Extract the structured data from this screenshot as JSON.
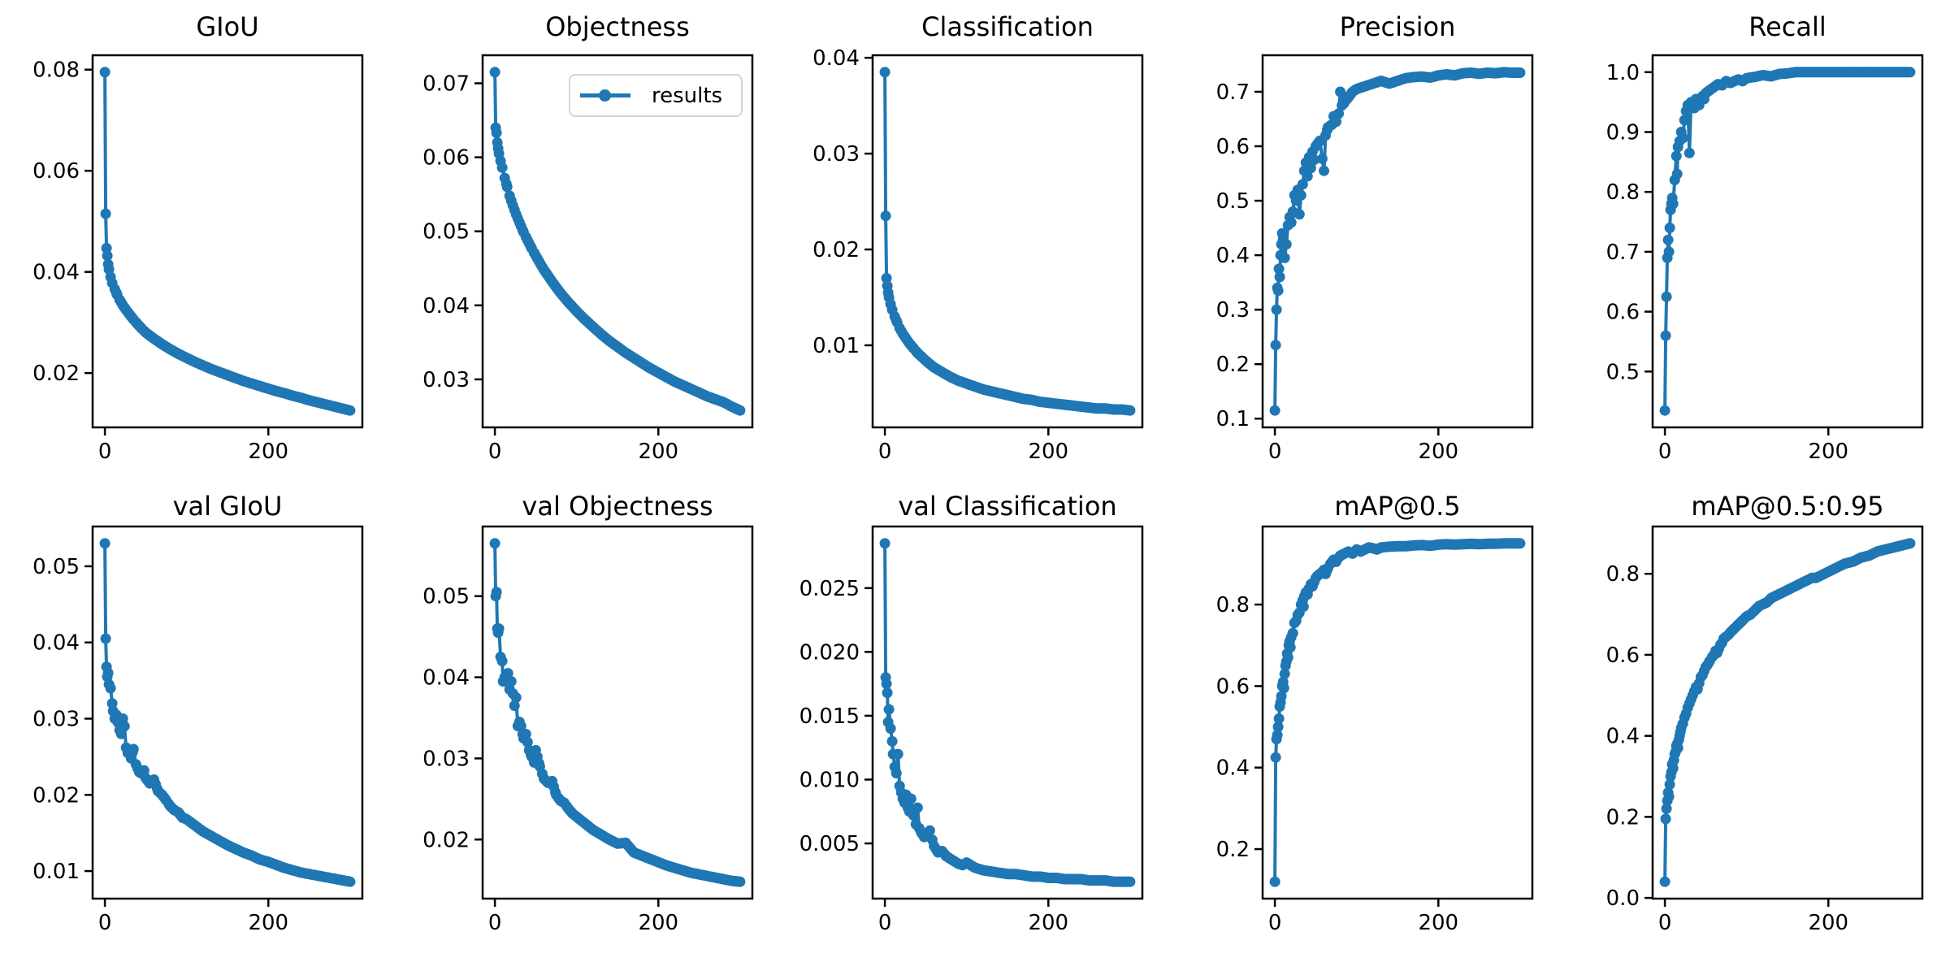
{
  "figure": {
    "background": "#ffffff",
    "line_color": "#1f77b4",
    "text_color": "#000000",
    "spine_color": "#000000",
    "grid": false,
    "xlim": [
      -15,
      315
    ],
    "xticks": [
      "0",
      "200"
    ]
  },
  "legend": {
    "label": "results",
    "host_chart": "Objectness",
    "position": "upper right"
  },
  "chart_data": [
    {
      "type": "line",
      "title": "GIoU",
      "yticks": [
        "0.02",
        "0.04",
        "0.06",
        "0.08"
      ],
      "x": [
        0,
        1,
        2,
        3,
        4,
        5,
        7,
        9,
        12,
        15,
        18,
        22,
        26,
        30,
        35,
        40,
        45,
        50,
        60,
        70,
        80,
        90,
        100,
        110,
        120,
        130,
        140,
        150,
        160,
        170,
        180,
        190,
        200,
        210,
        220,
        230,
        240,
        250,
        260,
        270,
        280,
        290,
        300
      ],
      "y": [
        0.0795,
        0.0515,
        0.0447,
        0.0432,
        0.0415,
        0.0405,
        0.039,
        0.0378,
        0.0366,
        0.0355,
        0.0345,
        0.0334,
        0.0325,
        0.0316,
        0.0306,
        0.0297,
        0.0288,
        0.028,
        0.0268,
        0.0257,
        0.0247,
        0.0238,
        0.023,
        0.0222,
        0.0215,
        0.0208,
        0.0202,
        0.0196,
        0.019,
        0.0184,
        0.0179,
        0.0174,
        0.0169,
        0.0164,
        0.016,
        0.0155,
        0.0151,
        0.0146,
        0.0142,
        0.0138,
        0.0134,
        0.013,
        0.0126
      ]
    },
    {
      "type": "line",
      "title": "Objectness",
      "yticks": [
        "0.03",
        "0.04",
        "0.05",
        "0.06",
        "0.07"
      ],
      "x": [
        0,
        1,
        2,
        3,
        4,
        5,
        7,
        9,
        12,
        15,
        18,
        22,
        26,
        30,
        35,
        40,
        45,
        50,
        60,
        70,
        80,
        90,
        100,
        110,
        120,
        130,
        140,
        150,
        160,
        170,
        180,
        190,
        200,
        210,
        220,
        230,
        240,
        250,
        260,
        270,
        280,
        290,
        300
      ],
      "y": [
        0.0715,
        0.064,
        0.0633,
        0.062,
        0.0612,
        0.0605,
        0.0595,
        0.0586,
        0.0572,
        0.056,
        0.0548,
        0.0535,
        0.0523,
        0.0512,
        0.0499,
        0.0488,
        0.0477,
        0.0467,
        0.0448,
        0.0432,
        0.0417,
        0.0404,
        0.0392,
        0.0381,
        0.0371,
        0.0361,
        0.0352,
        0.0344,
        0.0336,
        0.0329,
        0.0322,
        0.0315,
        0.0309,
        0.0303,
        0.0297,
        0.0292,
        0.0287,
        0.0282,
        0.0277,
        0.0273,
        0.0269,
        0.0263,
        0.0258
      ]
    },
    {
      "type": "line",
      "title": "Classification",
      "yticks": [
        "0.01",
        "0.02",
        "0.03",
        "0.04"
      ],
      "x": [
        0,
        1,
        2,
        3,
        4,
        5,
        7,
        9,
        12,
        15,
        18,
        22,
        26,
        30,
        35,
        40,
        45,
        50,
        60,
        70,
        80,
        90,
        100,
        110,
        120,
        130,
        140,
        150,
        160,
        170,
        180,
        190,
        200,
        210,
        220,
        230,
        240,
        250,
        260,
        270,
        280,
        290,
        300
      ],
      "y": [
        0.0385,
        0.0235,
        0.017,
        0.0162,
        0.0155,
        0.015,
        0.0143,
        0.0137,
        0.013,
        0.0124,
        0.0118,
        0.0112,
        0.0107,
        0.0102,
        0.0097,
        0.0092,
        0.0088,
        0.0084,
        0.0077,
        0.0072,
        0.0067,
        0.0063,
        0.006,
        0.0057,
        0.0054,
        0.0052,
        0.005,
        0.0048,
        0.0046,
        0.0044,
        0.0043,
        0.0041,
        0.004,
        0.0039,
        0.0038,
        0.0037,
        0.0036,
        0.0035,
        0.0034,
        0.0034,
        0.0033,
        0.0033,
        0.0032
      ]
    },
    {
      "type": "line",
      "title": "Precision",
      "yticks": [
        "0.1",
        "0.2",
        "0.3",
        "0.4",
        "0.5",
        "0.6",
        "0.7"
      ],
      "x": [
        0,
        1,
        2,
        3,
        4,
        5,
        6,
        7,
        8,
        9,
        10,
        12,
        14,
        16,
        18,
        20,
        22,
        24,
        26,
        28,
        30,
        32,
        34,
        36,
        38,
        40,
        42,
        44,
        46,
        48,
        50,
        55,
        60,
        62,
        65,
        70,
        72,
        75,
        78,
        80,
        82,
        85,
        90,
        95,
        100,
        110,
        120,
        130,
        140,
        150,
        160,
        170,
        180,
        190,
        200,
        210,
        220,
        230,
        240,
        250,
        260,
        270,
        280,
        290,
        300
      ],
      "y": [
        0.115,
        0.235,
        0.3,
        0.34,
        0.335,
        0.375,
        0.36,
        0.4,
        0.42,
        0.44,
        0.43,
        0.395,
        0.42,
        0.455,
        0.47,
        0.46,
        0.48,
        0.51,
        0.5,
        0.52,
        0.475,
        0.51,
        0.53,
        0.555,
        0.57,
        0.545,
        0.58,
        0.56,
        0.59,
        0.575,
        0.6,
        0.61,
        0.555,
        0.62,
        0.635,
        0.64,
        0.655,
        0.645,
        0.66,
        0.7,
        0.675,
        0.68,
        0.69,
        0.7,
        0.705,
        0.71,
        0.715,
        0.72,
        0.715,
        0.72,
        0.725,
        0.727,
        0.728,
        0.726,
        0.73,
        0.732,
        0.73,
        0.734,
        0.735,
        0.733,
        0.735,
        0.734,
        0.736,
        0.735,
        0.735
      ]
    },
    {
      "type": "line",
      "title": "Recall",
      "yticks": [
        "0.5",
        "0.6",
        "0.7",
        "0.8",
        "0.9",
        "1.0"
      ],
      "x": [
        0,
        1,
        2,
        3,
        4,
        5,
        6,
        7,
        8,
        9,
        10,
        12,
        14,
        15,
        16,
        18,
        20,
        22,
        24,
        26,
        28,
        30,
        32,
        34,
        35,
        36,
        38,
        40,
        42,
        44,
        46,
        48,
        50,
        55,
        60,
        65,
        70,
        75,
        80,
        85,
        90,
        95,
        100,
        110,
        120,
        130,
        140,
        150,
        160,
        170,
        180,
        190,
        200,
        210,
        220,
        230,
        240,
        250,
        260,
        270,
        280,
        290,
        300
      ],
      "y": [
        0.435,
        0.56,
        0.625,
        0.69,
        0.72,
        0.7,
        0.74,
        0.77,
        0.78,
        0.79,
        0.78,
        0.82,
        0.86,
        0.83,
        0.875,
        0.885,
        0.9,
        0.89,
        0.92,
        0.935,
        0.945,
        0.865,
        0.95,
        0.945,
        0.95,
        0.94,
        0.955,
        0.95,
        0.945,
        0.955,
        0.96,
        0.955,
        0.965,
        0.97,
        0.975,
        0.98,
        0.978,
        0.985,
        0.982,
        0.985,
        0.988,
        0.985,
        0.99,
        0.992,
        0.995,
        0.993,
        0.997,
        0.998,
        1.0,
        1.0,
        1.0,
        1.0,
        1.0,
        1.0,
        1.0,
        1.0,
        1.0,
        1.0,
        1.0,
        1.0,
        1.0,
        1.0,
        1.0
      ]
    },
    {
      "type": "line",
      "title": "val GIoU",
      "yticks": [
        "0.01",
        "0.02",
        "0.03",
        "0.04",
        "0.05"
      ],
      "x": [
        0,
        1,
        2,
        3,
        4,
        5,
        7,
        9,
        10,
        12,
        14,
        16,
        18,
        20,
        22,
        24,
        26,
        28,
        30,
        32,
        35,
        38,
        40,
        42,
        45,
        48,
        50,
        55,
        60,
        65,
        70,
        75,
        80,
        85,
        90,
        95,
        100,
        110,
        120,
        130,
        140,
        150,
        160,
        170,
        180,
        190,
        200,
        210,
        220,
        230,
        240,
        250,
        260,
        270,
        280,
        290,
        300
      ],
      "y": [
        0.053,
        0.0405,
        0.0368,
        0.0355,
        0.036,
        0.0345,
        0.034,
        0.032,
        0.031,
        0.03,
        0.0305,
        0.0295,
        0.0285,
        0.028,
        0.03,
        0.029,
        0.0262,
        0.0255,
        0.0258,
        0.0248,
        0.026,
        0.024,
        0.0235,
        0.023,
        0.0228,
        0.0232,
        0.0222,
        0.0215,
        0.022,
        0.0205,
        0.02,
        0.0193,
        0.0185,
        0.018,
        0.0177,
        0.017,
        0.0168,
        0.016,
        0.0152,
        0.0146,
        0.014,
        0.0134,
        0.0129,
        0.0124,
        0.012,
        0.0115,
        0.0112,
        0.0108,
        0.0104,
        0.0101,
        0.0098,
        0.0096,
        0.0094,
        0.0092,
        0.009,
        0.0088,
        0.0086
      ]
    },
    {
      "type": "line",
      "title": "val Objectness",
      "yticks": [
        "0.02",
        "0.03",
        "0.04",
        "0.05"
      ],
      "x": [
        0,
        1,
        2,
        3,
        4,
        5,
        7,
        9,
        10,
        12,
        14,
        16,
        18,
        20,
        22,
        24,
        26,
        28,
        30,
        32,
        35,
        38,
        40,
        42,
        45,
        48,
        50,
        55,
        60,
        65,
        70,
        75,
        80,
        85,
        90,
        95,
        100,
        110,
        120,
        130,
        140,
        150,
        160,
        170,
        180,
        190,
        200,
        210,
        220,
        230,
        240,
        250,
        260,
        270,
        280,
        290,
        300
      ],
      "y": [
        0.0565,
        0.05,
        0.0505,
        0.046,
        0.0455,
        0.046,
        0.0425,
        0.042,
        0.0395,
        0.04,
        0.0395,
        0.0405,
        0.0385,
        0.0395,
        0.038,
        0.0365,
        0.0375,
        0.034,
        0.0345,
        0.034,
        0.0325,
        0.033,
        0.032,
        0.031,
        0.0302,
        0.0295,
        0.031,
        0.029,
        0.0275,
        0.027,
        0.0272,
        0.0255,
        0.0248,
        0.0245,
        0.0238,
        0.0232,
        0.0228,
        0.022,
        0.0212,
        0.0206,
        0.02,
        0.0195,
        0.0196,
        0.0184,
        0.018,
        0.0176,
        0.0172,
        0.0168,
        0.0165,
        0.0162,
        0.0159,
        0.0157,
        0.0155,
        0.0153,
        0.0151,
        0.0149,
        0.0148
      ]
    },
    {
      "type": "line",
      "title": "val Classification",
      "yticks": [
        "0.005",
        "0.010",
        "0.015",
        "0.020",
        "0.025"
      ],
      "x": [
        0,
        1,
        2,
        3,
        4,
        5,
        7,
        9,
        10,
        12,
        14,
        16,
        18,
        20,
        22,
        24,
        26,
        28,
        30,
        32,
        35,
        38,
        40,
        42,
        45,
        48,
        50,
        55,
        60,
        65,
        70,
        75,
        80,
        85,
        90,
        95,
        100,
        110,
        120,
        130,
        140,
        150,
        160,
        170,
        180,
        190,
        200,
        210,
        220,
        230,
        240,
        250,
        260,
        270,
        280,
        290,
        300
      ],
      "y": [
        0.0285,
        0.018,
        0.0175,
        0.0168,
        0.0145,
        0.0155,
        0.014,
        0.013,
        0.012,
        0.011,
        0.0105,
        0.012,
        0.0095,
        0.009,
        0.0085,
        0.0082,
        0.0088,
        0.0078,
        0.0075,
        0.0085,
        0.0072,
        0.0065,
        0.0078,
        0.0062,
        0.0058,
        0.0055,
        0.0056,
        0.006,
        0.0048,
        0.0043,
        0.0044,
        0.004,
        0.0038,
        0.0036,
        0.0034,
        0.0033,
        0.0035,
        0.0031,
        0.0029,
        0.0028,
        0.0027,
        0.0026,
        0.0026,
        0.0025,
        0.0024,
        0.0024,
        0.0023,
        0.0023,
        0.0022,
        0.0022,
        0.0022,
        0.0021,
        0.0021,
        0.0021,
        0.002,
        0.002,
        0.002
      ]
    },
    {
      "type": "line",
      "title": "mAP@0.5",
      "yticks": [
        "0.2",
        "0.4",
        "0.6",
        "0.8"
      ],
      "x": [
        0,
        1,
        2,
        3,
        4,
        5,
        6,
        7,
        8,
        9,
        10,
        11,
        12,
        13,
        14,
        15,
        16,
        17,
        18,
        19,
        20,
        22,
        24,
        26,
        28,
        30,
        32,
        34,
        35,
        36,
        38,
        40,
        42,
        44,
        46,
        48,
        50,
        52,
        55,
        58,
        60,
        62,
        65,
        68,
        70,
        72,
        75,
        78,
        80,
        85,
        90,
        95,
        100,
        105,
        110,
        115,
        120,
        125,
        130,
        140,
        150,
        160,
        170,
        180,
        190,
        200,
        210,
        220,
        230,
        240,
        250,
        260,
        270,
        280,
        290,
        300
      ],
      "y": [
        0.12,
        0.425,
        0.47,
        0.48,
        0.5,
        0.52,
        0.55,
        0.56,
        0.575,
        0.6,
        0.61,
        0.595,
        0.63,
        0.65,
        0.66,
        0.68,
        0.67,
        0.7,
        0.71,
        0.695,
        0.72,
        0.73,
        0.755,
        0.76,
        0.775,
        0.78,
        0.8,
        0.81,
        0.795,
        0.82,
        0.83,
        0.825,
        0.84,
        0.85,
        0.845,
        0.855,
        0.865,
        0.87,
        0.875,
        0.88,
        0.885,
        0.875,
        0.89,
        0.9,
        0.905,
        0.91,
        0.905,
        0.915,
        0.92,
        0.925,
        0.93,
        0.925,
        0.935,
        0.93,
        0.935,
        0.94,
        0.938,
        0.935,
        0.94,
        0.942,
        0.943,
        0.943,
        0.945,
        0.946,
        0.944,
        0.947,
        0.948,
        0.947,
        0.948,
        0.949,
        0.948,
        0.949,
        0.949,
        0.95,
        0.95,
        0.95
      ]
    },
    {
      "type": "line",
      "title": "mAP@0.5:0.95",
      "yticks": [
        "0.0",
        "0.2",
        "0.4",
        "0.6",
        "0.8"
      ],
      "x": [
        0,
        1,
        2,
        3,
        4,
        5,
        6,
        7,
        8,
        9,
        10,
        11,
        12,
        13,
        14,
        15,
        16,
        17,
        18,
        19,
        20,
        22,
        24,
        26,
        28,
        30,
        32,
        34,
        36,
        38,
        40,
        42,
        44,
        46,
        48,
        50,
        52,
        55,
        58,
        60,
        62,
        64,
        66,
        68,
        70,
        72,
        75,
        78,
        80,
        85,
        90,
        95,
        100,
        105,
        110,
        115,
        120,
        125,
        130,
        135,
        140,
        145,
        150,
        155,
        160,
        165,
        170,
        175,
        180,
        185,
        190,
        195,
        200,
        210,
        220,
        230,
        240,
        250,
        260,
        270,
        280,
        290,
        300
      ],
      "y": [
        0.04,
        0.195,
        0.22,
        0.24,
        0.26,
        0.25,
        0.28,
        0.3,
        0.31,
        0.33,
        0.32,
        0.34,
        0.355,
        0.36,
        0.375,
        0.38,
        0.37,
        0.39,
        0.4,
        0.41,
        0.42,
        0.43,
        0.445,
        0.455,
        0.47,
        0.48,
        0.49,
        0.5,
        0.51,
        0.52,
        0.515,
        0.53,
        0.545,
        0.55,
        0.56,
        0.57,
        0.575,
        0.585,
        0.595,
        0.6,
        0.61,
        0.605,
        0.615,
        0.625,
        0.63,
        0.64,
        0.645,
        0.65,
        0.655,
        0.665,
        0.675,
        0.685,
        0.695,
        0.7,
        0.71,
        0.72,
        0.725,
        0.73,
        0.74,
        0.745,
        0.75,
        0.755,
        0.76,
        0.765,
        0.77,
        0.775,
        0.78,
        0.785,
        0.79,
        0.79,
        0.795,
        0.8,
        0.805,
        0.815,
        0.825,
        0.83,
        0.84,
        0.845,
        0.855,
        0.86,
        0.865,
        0.87,
        0.875
      ]
    }
  ]
}
